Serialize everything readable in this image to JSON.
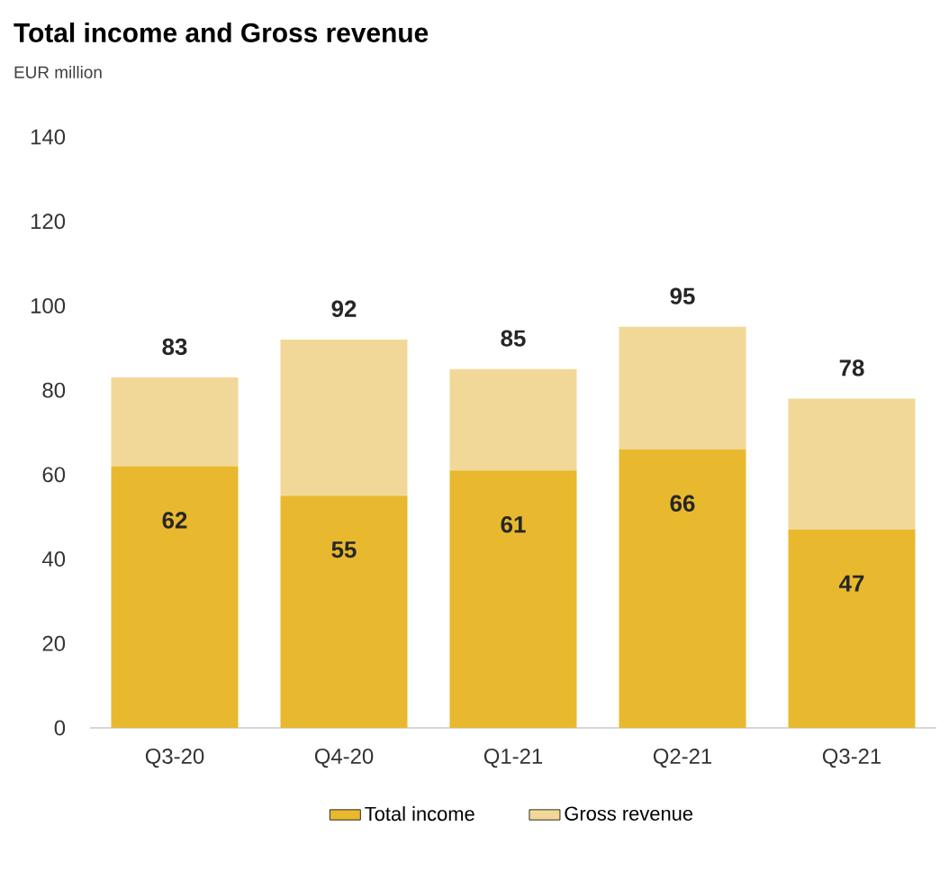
{
  "chart_data": {
    "type": "bar",
    "title": "Total income and Gross revenue",
    "subtitle": "EUR million",
    "categories": [
      "Q3-20",
      "Q4-20",
      "Q1-21",
      "Q2-21",
      "Q3-21"
    ],
    "stacked": true,
    "series": [
      {
        "name": "Total income",
        "color": "#e8b92e",
        "values": [
          62,
          55,
          61,
          66,
          47
        ],
        "value_labels": [
          "62",
          "55",
          "61",
          "66",
          "47"
        ]
      },
      {
        "name": "Gross revenue",
        "color": "#f2d898",
        "values": [
          21,
          37,
          24,
          29,
          31
        ]
      }
    ],
    "totals": [
      "83",
      "92",
      "85",
      "95",
      "78"
    ],
    "ylim": [
      0,
      140
    ],
    "yticks": [
      0,
      20,
      40,
      60,
      80,
      100,
      120,
      140
    ],
    "grid": false,
    "legend": "bottom"
  }
}
